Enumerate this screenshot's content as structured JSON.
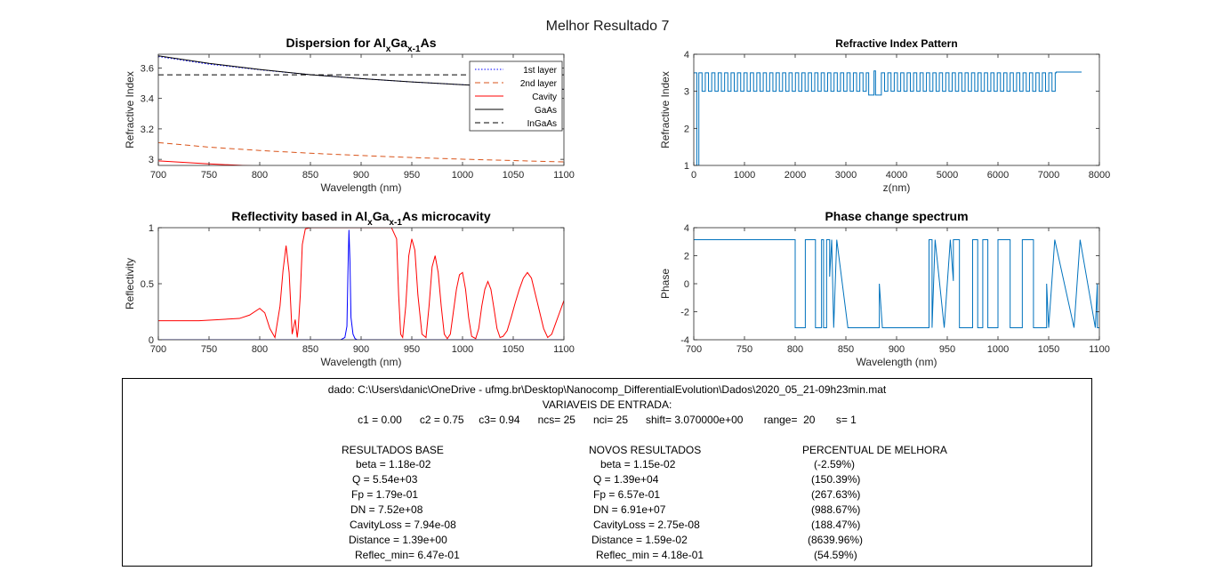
{
  "figure": {
    "suptitle": "Melhor Resultado 7"
  },
  "chart_data": [
    {
      "id": "dispersion",
      "type": "line",
      "title_parts": [
        "Dispersion for Al",
        "x",
        "Ga",
        "x-1",
        "As"
      ],
      "xlabel": "Wavelength (nm)",
      "ylabel": "Refractive Index",
      "xlim": [
        700,
        1100
      ],
      "ylim": [
        2.96,
        3.69
      ],
      "xticks": [
        700,
        750,
        800,
        850,
        900,
        950,
        1000,
        1050,
        1100
      ],
      "yticks": [
        3,
        3.2,
        3.4,
        3.6
      ],
      "grid": false,
      "legend_position": "top-right",
      "series": [
        {
          "name": "1st layer",
          "color": "#0000ff",
          "style": "dotted",
          "x": [
            700,
            750,
            800,
            850,
            900,
            950,
            1000,
            1050,
            1100
          ],
          "y": [
            3.675,
            3.625,
            3.588,
            3.556,
            3.53,
            3.508,
            3.49,
            3.474,
            3.46
          ]
        },
        {
          "name": "2nd layer",
          "color": "#d95319",
          "style": "dashed",
          "x": [
            700,
            750,
            800,
            850,
            900,
            950,
            1000,
            1050,
            1100
          ],
          "y": [
            3.11,
            3.08,
            3.058,
            3.04,
            3.025,
            3.012,
            3.001,
            2.992,
            2.983
          ]
        },
        {
          "name": "Cavity",
          "color": "#ff0000",
          "style": "solid",
          "x": [
            700,
            750,
            800,
            850,
            900,
            950,
            1000,
            1050,
            1100
          ],
          "y": [
            2.99,
            2.97,
            2.955,
            2.942,
            2.931,
            2.921,
            2.913,
            2.906,
            2.899
          ]
        },
        {
          "name": "GaAs",
          "color": "#000000",
          "style": "solid",
          "x": [
            700,
            750,
            800,
            850,
            900,
            950,
            1000,
            1050,
            1100
          ],
          "y": [
            3.68,
            3.63,
            3.59,
            3.556,
            3.53,
            3.508,
            3.49,
            3.474,
            3.46
          ]
        },
        {
          "name": "InGaAs",
          "color": "#000000",
          "style": "dashed",
          "x": [
            700,
            1100
          ],
          "y": [
            3.555,
            3.555
          ]
        }
      ]
    },
    {
      "id": "pattern",
      "type": "line",
      "title": "Refractive Index Pattern",
      "xlabel": "z(nm)",
      "ylabel": "Refractive Index",
      "xlim": [
        0,
        8000
      ],
      "ylim": [
        1,
        4
      ],
      "xticks": [
        0,
        1000,
        2000,
        3000,
        4000,
        5000,
        6000,
        7000,
        8000
      ],
      "yticks": [
        1,
        2,
        3,
        4
      ],
      "grid": false,
      "color": "#0072bd",
      "levels": {
        "ambient": 1.0,
        "substrate_left": 3.0,
        "high": 3.5,
        "low": 3.0,
        "cavity": 2.9,
        "cavity_spike": 3.55,
        "final": 3.52
      },
      "regions": {
        "ambient_end": 60,
        "dbr1_start": 100,
        "dbr1_end": 3450,
        "cavity_start": 3450,
        "cavity_end": 3700,
        "dbr2_start": 3700,
        "dbr2_end": 7150,
        "final_end": 7650,
        "period": 127
      }
    },
    {
      "id": "reflectivity",
      "type": "line",
      "title_parts": [
        "Reflectivity based in Al",
        "x",
        "Ga",
        "x-1",
        "As microcavity"
      ],
      "xlabel": "Wavelength (nm)",
      "ylabel": "Reflectivity",
      "xlim": [
        700,
        1100
      ],
      "ylim": [
        0,
        1
      ],
      "xticks": [
        700,
        750,
        800,
        850,
        900,
        950,
        1000,
        1050,
        1100
      ],
      "yticks": [
        0,
        0.5,
        1
      ],
      "grid": false,
      "series": [
        {
          "color": "#ff0000",
          "x": [
            700,
            720,
            740,
            760,
            780,
            790,
            800,
            805,
            810,
            815,
            820,
            823,
            826,
            829,
            832,
            835,
            837,
            838,
            840,
            842,
            845,
            850,
            900,
            930,
            935,
            937,
            939,
            941,
            944,
            947,
            950,
            953,
            956,
            960,
            964,
            967,
            970,
            973,
            976,
            979,
            982,
            985,
            988,
            991,
            994,
            997,
            1000,
            1003,
            1006,
            1009,
            1013,
            1016,
            1019,
            1022,
            1025,
            1028,
            1031,
            1034,
            1037,
            1040,
            1044,
            1048,
            1052,
            1056,
            1060,
            1064,
            1068,
            1072,
            1076,
            1080,
            1084,
            1088,
            1092,
            1096,
            1100
          ],
          "y": [
            0.17,
            0.17,
            0.17,
            0.18,
            0.19,
            0.22,
            0.28,
            0.24,
            0.1,
            0.02,
            0.3,
            0.62,
            0.84,
            0.6,
            0.05,
            0.18,
            0.02,
            0.1,
            0.4,
            0.85,
            0.99,
            1.0,
            1.0,
            1.0,
            0.9,
            0.4,
            0.05,
            0.02,
            0.3,
            0.75,
            0.9,
            0.8,
            0.4,
            0.05,
            0.02,
            0.3,
            0.65,
            0.75,
            0.6,
            0.3,
            0.05,
            0.01,
            0.05,
            0.25,
            0.45,
            0.58,
            0.6,
            0.45,
            0.2,
            0.03,
            0.01,
            0.1,
            0.3,
            0.45,
            0.52,
            0.45,
            0.28,
            0.1,
            0.02,
            0.03,
            0.08,
            0.2,
            0.33,
            0.45,
            0.55,
            0.6,
            0.55,
            0.4,
            0.25,
            0.1,
            0.02,
            0.05,
            0.15,
            0.25,
            0.35
          ]
        },
        {
          "color": "#0000ff",
          "x": [
            700,
            880,
            884,
            886,
            887,
            888,
            889,
            890,
            892,
            894,
            896,
            1100
          ],
          "y": [
            0.0,
            0.0,
            0.02,
            0.12,
            0.6,
            0.98,
            0.7,
            0.2,
            0.05,
            0.01,
            0.0,
            0.0
          ]
        }
      ]
    },
    {
      "id": "phase",
      "type": "line",
      "title": "Phase change spectrum",
      "xlabel": "Wavelength (nm)",
      "ylabel": "Phase",
      "xlim": [
        700,
        1100
      ],
      "ylim": [
        -4,
        4
      ],
      "xticks": [
        700,
        750,
        800,
        850,
        900,
        950,
        1000,
        1050,
        1100
      ],
      "yticks": [
        -4,
        -2,
        0,
        2,
        4
      ],
      "grid": false,
      "color": "#0072bd",
      "series": [
        {
          "x": [
            700,
            800,
            800,
            810,
            810,
            820,
            820,
            826,
            826,
            828,
            828,
            831,
            831,
            834,
            834,
            836,
            836,
            838,
            838,
            841,
            841,
            852,
            852,
            883,
            883,
            886,
            886,
            932,
            932,
            935,
            935,
            938,
            938,
            947,
            947,
            953,
            953,
            956,
            956,
            962,
            962,
            975,
            975,
            980,
            980,
            985,
            985,
            990,
            990,
            1000,
            1000,
            1012,
            1012,
            1024,
            1024,
            1035,
            1035,
            1048,
            1048,
            1050,
            1050,
            1056,
            1056,
            1075,
            1075,
            1081,
            1081,
            1096,
            1096,
            1098,
            1098,
            1100
          ],
          "y": [
            3.14,
            3.14,
            -3.14,
            -3.14,
            3.14,
            3.14,
            -3.14,
            -3.14,
            3.14,
            3.14,
            -3.14,
            -3.14,
            3.14,
            3.14,
            0.5,
            3.14,
            3.14,
            -3.14,
            -3.14,
            3.14,
            3.14,
            -3.14,
            -3.14,
            -3.14,
            0,
            -3.14,
            -3.14,
            -3.14,
            3.14,
            3.14,
            -3.14,
            3.14,
            3.14,
            -3.14,
            -3.14,
            3.14,
            3.14,
            0.2,
            3.14,
            3.14,
            -3.14,
            -3.14,
            3.14,
            3.14,
            -3.14,
            -3.14,
            3.14,
            3.14,
            -3.14,
            -3.14,
            3.14,
            3.14,
            -3.14,
            -3.14,
            3.14,
            3.14,
            -3.14,
            -3.14,
            0,
            -3.14,
            -3.14,
            3.14,
            3.14,
            -3.14,
            -3.14,
            3.14,
            3.14,
            -3.14,
            -3.14,
            0,
            -3.14,
            -3.14
          ]
        }
      ]
    }
  ],
  "info": {
    "file_line": "dado: C:\\Users\\danic\\OneDrive - ufmg.br\\Desktop\\Nanocomp_DifferentialEvolution\\Dados\\2020_05_21-09h23min.mat",
    "entrada_title": "VARIAVEIS DE ENTRADA:",
    "params": "c1 = 0.00      c2 = 0.75     c3= 0.94      ncs= 25      nci= 25      shift= 3.070000e+00       range=  20       s= 1",
    "base": {
      "header": "RESULTADOS BASE",
      "rows": [
        "beta = 1.18e-02",
        "Q = 5.54e+03",
        "Fp = 1.79e-01",
        "DN = 7.52e+08",
        "CavityLoss = 7.94e-08",
        "Distance = 1.39e+00",
        "Reflec_min= 6.47e-01"
      ]
    },
    "novos": {
      "header": "NOVOS RESULTADOS",
      "rows": [
        "beta = 1.15e-02",
        "Q = 1.39e+04",
        "Fp = 6.57e-01",
        "DN = 6.91e+07",
        "CavityLoss = 2.75e-08",
        "Distance = 1.59e-02",
        "Reflec_min = 4.18e-01"
      ]
    },
    "melhora": {
      "header": "PERCENTUAL DE MELHORA",
      "rows": [
        "(-2.59%)",
        "(150.39%)",
        "(267.63%)",
        "(988.67%)",
        "(188.47%)",
        "(8639.96%)",
        "(54.59%)"
      ]
    }
  }
}
